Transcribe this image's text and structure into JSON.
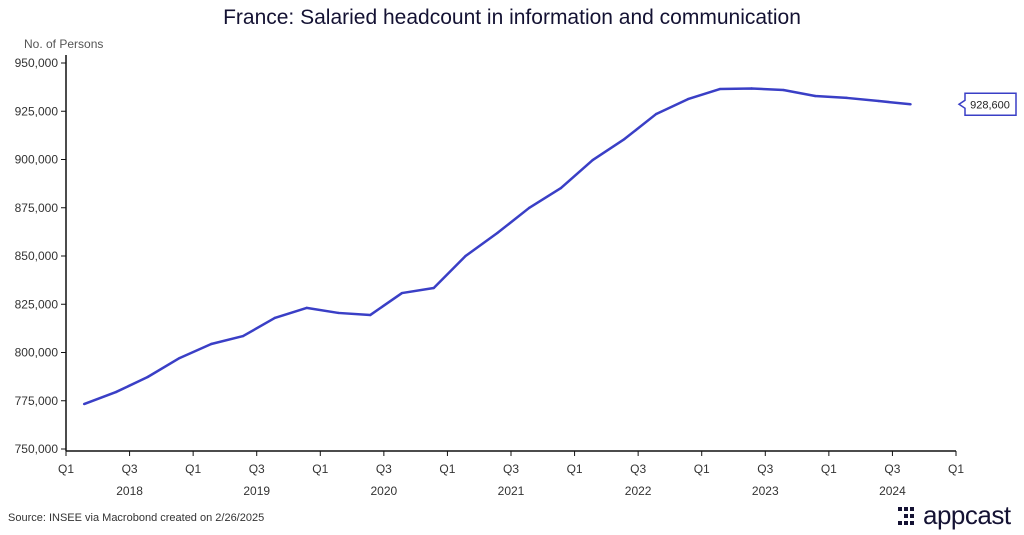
{
  "chart_data": {
    "type": "line",
    "title": "France: Salaried headcount in information and communication",
    "ylabel": "No. of Persons",
    "xlabel": "",
    "ylim": [
      750000,
      950000
    ],
    "yticks": [
      "750,000",
      "775,000",
      "800,000",
      "825,000",
      "850,000",
      "875,000",
      "900,000",
      "925,000",
      "950,000"
    ],
    "ytick_values": [
      750000,
      775000,
      800000,
      825000,
      850000,
      875000,
      900000,
      925000,
      950000
    ],
    "xticks": [
      "Q1",
      "Q3",
      "Q1",
      "Q3",
      "Q1",
      "Q3",
      "Q1",
      "Q3",
      "Q1",
      "Q3",
      "Q1",
      "Q3",
      "Q1",
      "Q3",
      "Q1"
    ],
    "years": [
      "2018",
      "2019",
      "2020",
      "2021",
      "2022",
      "2023",
      "2024"
    ],
    "grid": false,
    "series": [
      {
        "name": "Salaried headcount",
        "color": "#3a3fc6",
        "x": [
          "2018Q1",
          "2018Q2",
          "2018Q3",
          "2018Q4",
          "2019Q1",
          "2019Q2",
          "2019Q3",
          "2019Q4",
          "2020Q1",
          "2020Q2",
          "2020Q3",
          "2020Q4",
          "2021Q1",
          "2021Q2",
          "2021Q3",
          "2021Q4",
          "2022Q1",
          "2022Q2",
          "2022Q3",
          "2022Q4",
          "2023Q1",
          "2023Q2",
          "2023Q3",
          "2023Q4",
          "2024Q1",
          "2024Q2",
          "2024Q3"
        ],
        "values": [
          773300,
          779500,
          787300,
          797100,
          804400,
          808500,
          817900,
          823100,
          820500,
          819400,
          830800,
          833400,
          850000,
          861900,
          874900,
          885200,
          899700,
          910600,
          923600,
          931300,
          936500,
          936800,
          936000,
          932900,
          931900,
          930300,
          928600
        ]
      }
    ],
    "last_value_label": "928,600"
  },
  "source": "Source: INSEE via Macrobond created on 2/26/2025",
  "logo": "appcast"
}
